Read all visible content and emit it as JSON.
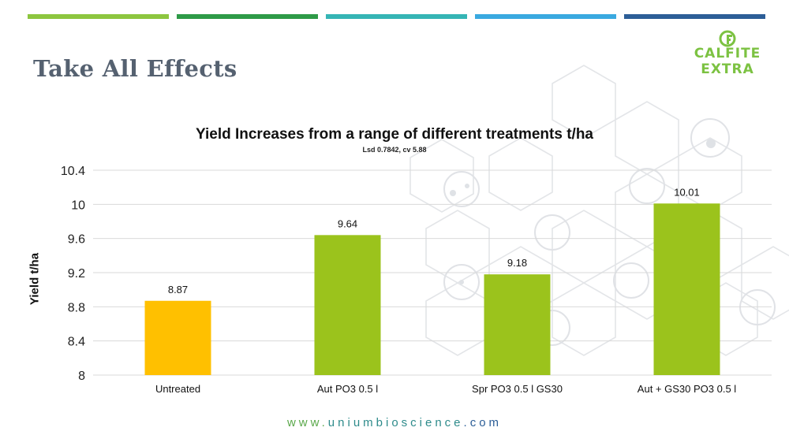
{
  "slide": {
    "title": "Take All Effects",
    "stripe_colors": [
      "#8dc63f",
      "#2e9a47",
      "#35b5b5",
      "#3aa9e0",
      "#2c5e97"
    ]
  },
  "logo": {
    "line1": "CALFITE",
    "line2": "EXTRA",
    "color": "#7cc242"
  },
  "footer": {
    "prefix": "www.",
    "brand": "uniumbioscience",
    "suffix": ".com",
    "prefix_color": "#5aa84a",
    "brand_color": "#2e8b8b",
    "suffix_color": "#2c5e97"
  },
  "chart_data": {
    "type": "bar",
    "title": "Yield Increases from a range of different treatments t/ha",
    "subtitle": "Lsd 0.7842, cv 5.88",
    "ylabel": "Yield  t/ha",
    "xlabel": "",
    "ylim": [
      8,
      10.4
    ],
    "yticks": [
      8,
      8.4,
      8.8,
      9.2,
      9.6,
      10,
      10.4
    ],
    "ytick_labels": [
      "8",
      "8.4",
      "8.8",
      "9.2",
      "9.6",
      "10",
      "10.4"
    ],
    "grid": true,
    "categories": [
      "Untreated",
      "Aut PO3 0.5 l",
      "Spr PO3 0.5 l GS30",
      "Aut + GS30 PO3 0.5 l"
    ],
    "values": [
      8.87,
      9.64,
      9.18,
      10.01
    ],
    "value_labels": [
      "8.87",
      "9.64",
      "9.18",
      "10.01"
    ],
    "colors": [
      "#ffc000",
      "#9bc31c",
      "#9bc31c",
      "#9bc31c"
    ]
  }
}
